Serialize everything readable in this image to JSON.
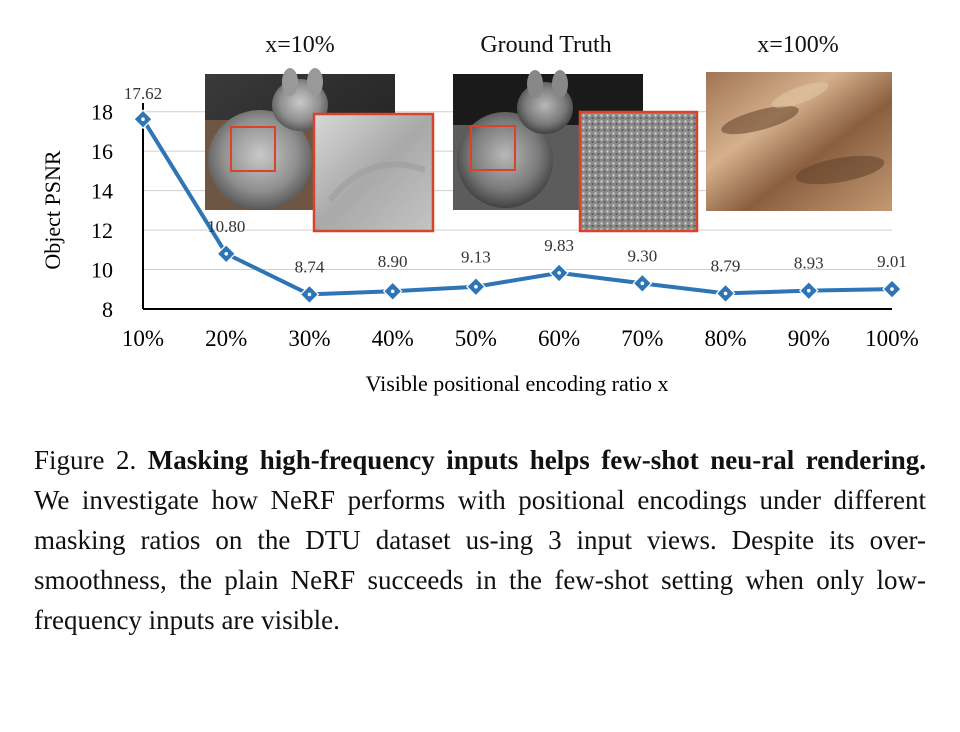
{
  "chart_data": {
    "type": "line",
    "categories": [
      "10%",
      "20%",
      "30%",
      "40%",
      "50%",
      "60%",
      "70%",
      "80%",
      "90%",
      "100%"
    ],
    "series": [
      {
        "values": [
          17.62,
          10.8,
          8.74,
          8.9,
          9.13,
          9.83,
          9.3,
          8.79,
          8.93,
          9.01
        ]
      }
    ],
    "value_labels": [
      "17.62",
      "10.80",
      "8.74",
      "8.90",
      "9.13",
      "9.83",
      "9.30",
      "8.79",
      "8.93",
      "9.01"
    ],
    "ylabel": "Object PSNR",
    "xlabel": "Visible positional encoding ratio x",
    "yticks": [
      8,
      10,
      12,
      14,
      16,
      18
    ],
    "ylim": [
      8,
      19
    ],
    "grid": true,
    "line_color": "#2e75b6"
  },
  "thumbnails": [
    {
      "title": "x=10%"
    },
    {
      "title": "Ground Truth"
    },
    {
      "title": "x=100%"
    }
  ],
  "caption": {
    "label": "Figure 2.",
    "bold": "Masking high-frequency inputs helps few-shot neu-ral rendering.",
    "text": "We investigate how NeRF performs with positional encodings under different masking ratios on the DTU dataset us-ing 3 input views. Despite its over-smoothness, the plain NeRF succeeds in the few-shot setting when only low-frequency inputs are visible."
  }
}
